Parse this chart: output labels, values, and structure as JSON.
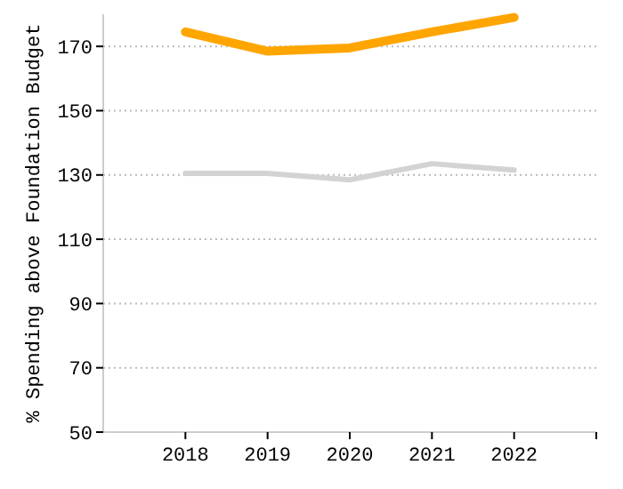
{
  "chart_data": {
    "type": "line",
    "ylabel": "% Spending above Foundation Budget",
    "x": [
      2018,
      2019,
      2020,
      2021,
      2022
    ],
    "xlim": [
      2017,
      2023
    ],
    "xticks": [
      2018,
      2019,
      2020,
      2021,
      2022,
      {
        "value": 2023,
        "label": null
      }
    ],
    "ylim": [
      50,
      180
    ],
    "yticks": [
      50,
      70,
      90,
      110,
      130,
      150,
      170
    ],
    "grid": "y",
    "series": [
      {
        "color": "#ffa500",
        "values": [
          174.5,
          168.5,
          169.5,
          174.5,
          179
        ]
      },
      {
        "color": "#d3d3d3",
        "values": [
          130.5,
          130.5,
          128.5,
          133.5,
          131.5
        ]
      }
    ]
  }
}
